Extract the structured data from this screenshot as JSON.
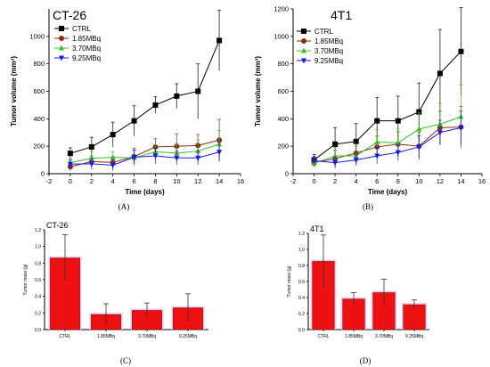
{
  "panel_labels": {
    "A": "(A)",
    "B": "(B)",
    "C": "(C)",
    "D": "(D)"
  },
  "chart_data": [
    {
      "type": "line",
      "panel": "A",
      "title": "CT-26",
      "xlabel": "Time (days)",
      "ylabel": "Tumor volume (mm³)",
      "xlim": [
        -2,
        16
      ],
      "ylim": [
        0,
        1200
      ],
      "xticks": [
        -2,
        0,
        2,
        4,
        6,
        8,
        10,
        12,
        14,
        16
      ],
      "yticks": [
        0,
        200,
        400,
        600,
        800,
        1000
      ],
      "legend_position": "top-left",
      "x": [
        0,
        2,
        4,
        6,
        8,
        10,
        12,
        14
      ],
      "series": [
        {
          "name": "CTRL",
          "color": "#000000",
          "marker": "square",
          "values": [
            148,
            195,
            285,
            385,
            500,
            565,
            600,
            970
          ],
          "errors": [
            40,
            70,
            90,
            110,
            60,
            90,
            200,
            220
          ]
        },
        {
          "name": "1.85MBq",
          "color": "#8b2a10",
          "marker": "circle",
          "values": [
            50,
            88,
            82,
            125,
            195,
            200,
            205,
            245
          ],
          "errors": [
            30,
            40,
            40,
            60,
            60,
            90,
            80,
            150
          ]
        },
        {
          "name": "3.70MBq",
          "color": "#3bbf2a",
          "marker": "triangle-up",
          "values": [
            80,
            112,
            120,
            115,
            160,
            150,
            165,
            215
          ],
          "errors": [
            30,
            50,
            40,
            60,
            50,
            60,
            80,
            100
          ]
        },
        {
          "name": "9.25MBq",
          "color": "#1a1ae6",
          "marker": "triangle-down",
          "values": [
            70,
            72,
            62,
            120,
            130,
            115,
            115,
            158
          ],
          "errors": [
            30,
            40,
            40,
            50,
            60,
            50,
            50,
            70
          ]
        }
      ]
    },
    {
      "type": "line",
      "panel": "B",
      "title": "4T1",
      "xlabel": "Time (days)",
      "ylabel": "Tumor volume (mm³)",
      "xlim": [
        -2,
        16
      ],
      "ylim": [
        0,
        1200
      ],
      "xticks": [
        -2,
        0,
        2,
        4,
        6,
        8,
        10,
        12,
        14,
        16
      ],
      "yticks": [
        0,
        200,
        400,
        600,
        800,
        1000,
        1200
      ],
      "legend_position": "top-left",
      "x": [
        0,
        2,
        4,
        6,
        8,
        10,
        12,
        14
      ],
      "series": [
        {
          "name": "CTRL",
          "color": "#000000",
          "marker": "square",
          "values": [
            100,
            215,
            235,
            385,
            385,
            450,
            730,
            890
          ],
          "errors": [
            40,
            120,
            130,
            170,
            180,
            210,
            320,
            320
          ]
        },
        {
          "name": "1.85MBq",
          "color": "#8b2a10",
          "marker": "circle",
          "values": [
            80,
            110,
            150,
            195,
            215,
            200,
            335,
            340
          ],
          "errors": [
            30,
            60,
            70,
            80,
            90,
            100,
            120,
            150
          ]
        },
        {
          "name": "3.70MBq",
          "color": "#3bbf2a",
          "marker": "triangle-up",
          "values": [
            75,
            130,
            130,
            230,
            225,
            325,
            360,
            415
          ],
          "errors": [
            30,
            60,
            70,
            90,
            100,
            120,
            150,
            230
          ]
        },
        {
          "name": "9.25MBq",
          "color": "#1a1ae6",
          "marker": "triangle-down",
          "values": [
            95,
            80,
            100,
            130,
            155,
            195,
            300,
            335
          ],
          "errors": [
            30,
            40,
            40,
            60,
            60,
            80,
            90,
            120
          ]
        }
      ]
    },
    {
      "type": "bar",
      "panel": "C",
      "title": "CT-26",
      "xlabel": "",
      "ylabel": "Tumor mass (g)",
      "ylim": [
        0,
        1.2
      ],
      "yticks": [
        0,
        0.2,
        0.4,
        0.6,
        0.8,
        1.0,
        1.2
      ],
      "ytick_labels": [
        "0.0",
        "0.2",
        "0.4",
        "0.6",
        "0.8",
        "1.0",
        "1.2"
      ],
      "categories": [
        "CTRL",
        "1.85MBq",
        "3.70MBq",
        "9.25MBq"
      ],
      "values": [
        0.86,
        0.18,
        0.23,
        0.26
      ],
      "errors": [
        0.28,
        0.13,
        0.09,
        0.17
      ],
      "bar_color": "#ee1111"
    },
    {
      "type": "bar",
      "panel": "D",
      "title": "4T1",
      "xlabel": "",
      "ylabel": "Tumor mass (g)",
      "ylim": [
        0,
        1.2
      ],
      "yticks": [
        0,
        0.2,
        0.4,
        0.6,
        0.8,
        1.0,
        1.2
      ],
      "ytick_labels": [
        "0.0",
        "0.2",
        "0.4",
        "0.6",
        "0.8",
        "1.0",
        "1.2"
      ],
      "categories": [
        "CTRL",
        "1.85MBq",
        "3.70MBq",
        "9.25MBq"
      ],
      "values": [
        0.85,
        0.38,
        0.46,
        0.31
      ],
      "errors": [
        0.33,
        0.08,
        0.17,
        0.06
      ],
      "bar_color": "#ee1111"
    }
  ]
}
